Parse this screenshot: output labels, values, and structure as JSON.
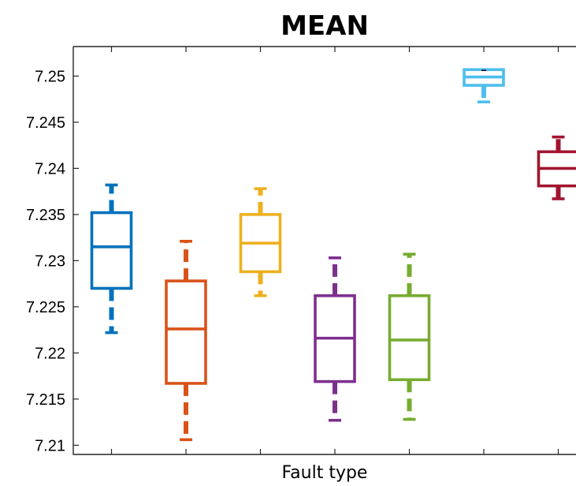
{
  "chart_data": {
    "type": "box",
    "title": "MEAN",
    "xlabel": "Fault type",
    "ylabel": "",
    "ylim": [
      7.209,
      7.2532
    ],
    "yticks": [
      "7.21",
      "7.215",
      "7.22",
      "7.225",
      "7.23",
      "7.235",
      "7.24",
      "7.245",
      "7.25"
    ],
    "grid": false,
    "legend": "none",
    "boxes": [
      {
        "color": "#0072BD",
        "whisker_low": 7.2222,
        "q1": 7.227,
        "median": 7.2315,
        "q3": 7.2352,
        "whisker_high": 7.2382
      },
      {
        "color": "#D95319",
        "whisker_low": 7.2106,
        "q1": 7.2167,
        "median": 7.2226,
        "q3": 7.2278,
        "whisker_high": 7.2321
      },
      {
        "color": "#EDB120",
        "whisker_low": 7.2262,
        "q1": 7.2288,
        "median": 7.2319,
        "q3": 7.235,
        "whisker_high": 7.2378
      },
      {
        "color": "#7E2F8E",
        "whisker_low": 7.2127,
        "q1": 7.2169,
        "median": 7.2216,
        "q3": 7.2262,
        "whisker_high": 7.2303
      },
      {
        "color": "#77AC30",
        "whisker_low": 7.2128,
        "q1": 7.2171,
        "median": 7.2214,
        "q3": 7.2262,
        "whisker_high": 7.2307
      },
      {
        "color": "#4DBEEE",
        "whisker_low": 7.2472,
        "q1": 7.249,
        "median": 7.2499,
        "q3": 7.2507,
        "whisker_high": 7.2507
      },
      {
        "color": "#A2142F",
        "whisker_low": 7.2367,
        "q1": 7.2381,
        "median": 7.24,
        "q3": 7.2418,
        "whisker_high": 7.2434
      }
    ]
  }
}
